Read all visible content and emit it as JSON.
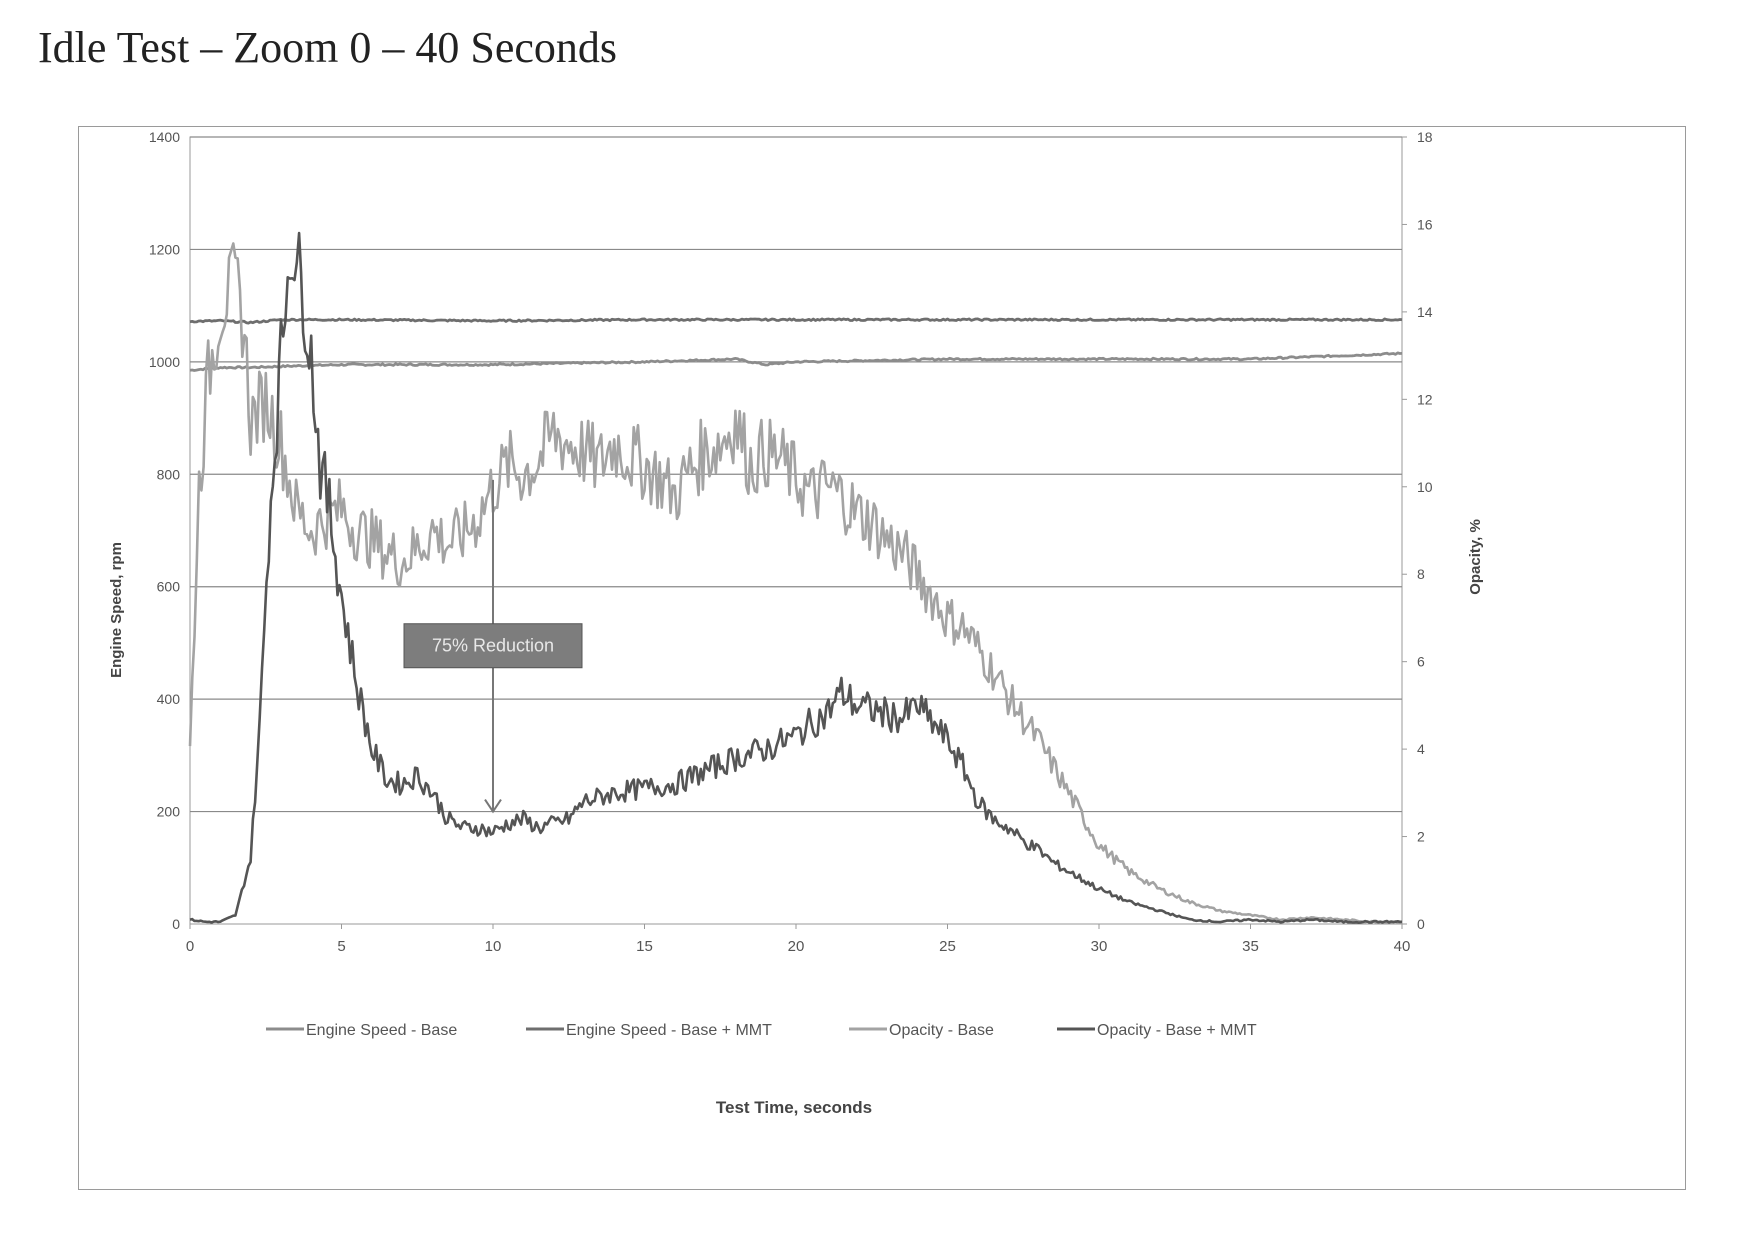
{
  "page": {
    "title": "Idle Test – Zoom 0 – 40 Seconds"
  },
  "chart_data": {
    "type": "line",
    "title": "",
    "xlabel": "Test Time, seconds",
    "ylabel_left": "Engine Speed, rpm",
    "ylabel_right": "Opacity, %",
    "xlim": [
      0,
      40
    ],
    "ylim_left": [
      0,
      1400
    ],
    "ylim_right": [
      0,
      18
    ],
    "x_ticks": [
      "0",
      "5",
      "10",
      "15",
      "20",
      "25",
      "30",
      "35",
      "40"
    ],
    "y_left_ticks": [
      "0",
      "200",
      "400",
      "600",
      "800",
      "1000",
      "1200",
      "1400"
    ],
    "y_right_ticks": [
      "0",
      "2",
      "4",
      "6",
      "8",
      "10",
      "12",
      "14",
      "16",
      "18"
    ],
    "grid": {
      "horizontal": true,
      "vertical": false
    },
    "legend": {
      "position": "bottom"
    },
    "annotation": {
      "text": "75% Reduction",
      "arrow_x": 10,
      "arrow_y_top": 790,
      "arrow_y_bottom": 200,
      "box_center_x": 10,
      "box_center_y": 495
    },
    "series": [
      {
        "name": "Engine Speed - Base",
        "axis": "left",
        "color": "#8c8c8c",
        "x": [
          0,
          1,
          2,
          3,
          5,
          10,
          15,
          18,
          19,
          20,
          25,
          30,
          35,
          40
        ],
        "y": [
          985,
          990,
          990,
          992,
          995,
          995,
          1000,
          1005,
          995,
          1000,
          1005,
          1005,
          1005,
          1015
        ]
      },
      {
        "name": "Engine Speed - Base + MMT",
        "axis": "left",
        "color": "#6e6e6e",
        "x": [
          0,
          1,
          2,
          3,
          5,
          10,
          15,
          20,
          25,
          30,
          35,
          40
        ],
        "y": [
          1072,
          1073,
          1070,
          1075,
          1075,
          1073,
          1075,
          1075,
          1075,
          1075,
          1075,
          1075
        ]
      },
      {
        "name": "Opacity - Base",
        "axis": "right",
        "color": "#a3a3a3",
        "x": [
          0,
          0.3,
          0.6,
          1,
          1.5,
          1.8,
          2,
          2.5,
          3,
          3.5,
          4,
          4.5,
          5,
          5.5,
          6,
          6.5,
          7,
          7.5,
          8,
          8.5,
          9,
          9.5,
          10,
          10.5,
          11,
          11.5,
          12,
          12.5,
          13,
          13.5,
          14,
          14.5,
          15,
          15.5,
          16,
          16.5,
          17,
          17.5,
          18,
          18.5,
          19,
          19.5,
          20,
          20.5,
          21,
          21.5,
          22,
          22.5,
          23,
          23.5,
          24,
          24.5,
          25,
          25.5,
          26,
          26.5,
          27,
          27.5,
          28,
          28.5,
          29,
          29.5,
          30,
          31,
          32,
          33,
          34,
          35,
          36,
          37,
          38,
          39,
          40
        ],
        "y": [
          4,
          10,
          12.5,
          14,
          14.8,
          13.5,
          11.5,
          12,
          11,
          9.5,
          9,
          9.3,
          9.5,
          9,
          8.8,
          8.5,
          8.3,
          8.6,
          9,
          8.7,
          8.9,
          9.3,
          10,
          10.5,
          10.3,
          10.6,
          11.2,
          11,
          10.8,
          10.5,
          11,
          10.7,
          10.5,
          10.2,
          9.8,
          10.4,
          10.8,
          11,
          11.5,
          10.5,
          10.8,
          10.6,
          10.2,
          9.8,
          10,
          9.8,
          9.4,
          9.2,
          8.8,
          8.5,
          8,
          7.5,
          7,
          6.8,
          6.3,
          5.8,
          5.2,
          4.7,
          4.2,
          3.6,
          3,
          2.4,
          1.8,
          1.2,
          0.8,
          0.5,
          0.3,
          0.2,
          0.1,
          0.15,
          0.1,
          0.05,
          0.05
        ]
      },
      {
        "name": "Opacity - Base + MMT",
        "axis": "right",
        "color": "#555555",
        "x": [
          0,
          0.5,
          1,
          1.5,
          2,
          2.3,
          2.6,
          3,
          3.3,
          3.6,
          4,
          4.3,
          4.6,
          5,
          5.5,
          6,
          6.5,
          7,
          7.5,
          8,
          8.5,
          9,
          9.5,
          10,
          10.5,
          11,
          11.5,
          12,
          12.5,
          13,
          14,
          15,
          16,
          17,
          18,
          19,
          20,
          20.5,
          21,
          21.5,
          22,
          22.5,
          23,
          23.5,
          24,
          24.5,
          25,
          25.5,
          26,
          26.5,
          27,
          27.5,
          28,
          28.5,
          29,
          29.5,
          30,
          31,
          32,
          33,
          34,
          35,
          36,
          37,
          38,
          39,
          40
        ],
        "y": [
          0.1,
          0.05,
          0.05,
          0.2,
          1.5,
          4.5,
          9,
          13,
          15.5,
          15,
          13,
          10.5,
          9.5,
          7.5,
          5.5,
          4,
          3.3,
          3.2,
          3.4,
          3,
          2.4,
          2.2,
          2.2,
          2.1,
          2.3,
          2.4,
          2.2,
          2.3,
          2.4,
          2.8,
          3,
          3.1,
          3.2,
          3.5,
          3.8,
          4,
          4.3,
          4.6,
          4.8,
          5.3,
          5,
          4.9,
          4.8,
          4.7,
          5,
          4.6,
          4.2,
          3.6,
          2.8,
          2.4,
          2.2,
          1.9,
          1.7,
          1.4,
          1.2,
          1,
          0.8,
          0.5,
          0.3,
          0.1,
          0.05,
          0.1,
          0.05,
          0.1,
          0.05,
          0.05,
          0.05
        ]
      }
    ]
  }
}
